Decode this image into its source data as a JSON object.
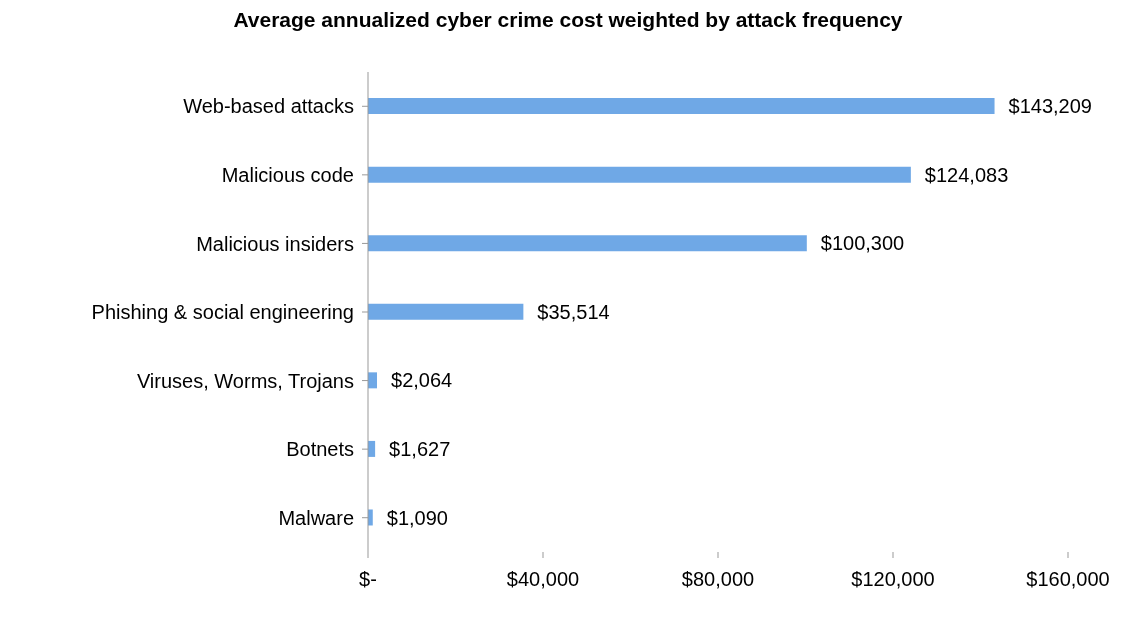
{
  "chart_data": {
    "type": "bar",
    "orientation": "horizontal",
    "title": "Average annualized cyber crime cost weighted by attack frequency",
    "categories": [
      "Web-based attacks",
      "Malicious code",
      "Malicious insiders",
      "Phishing & social engineering",
      "Viruses, Worms, Trojans",
      "Botnets",
      "Malware"
    ],
    "values": [
      143209,
      124083,
      100300,
      35514,
      2064,
      1627,
      1090
    ],
    "value_labels": [
      "$143,209",
      "$124,083",
      "$100,300",
      "$35,514",
      "$2,064",
      "$1,627",
      "$1,090"
    ],
    "color": "#6fa8e6",
    "xlim": [
      0,
      160000
    ],
    "xticks": [
      {
        "value": 0,
        "label": "$-"
      },
      {
        "value": 40000,
        "label": "$40,000"
      },
      {
        "value": 80000,
        "label": "$80,000"
      },
      {
        "value": 120000,
        "label": "$120,000"
      },
      {
        "value": 160000,
        "label": "$160,000"
      }
    ],
    "grid": false,
    "legend": false
  }
}
